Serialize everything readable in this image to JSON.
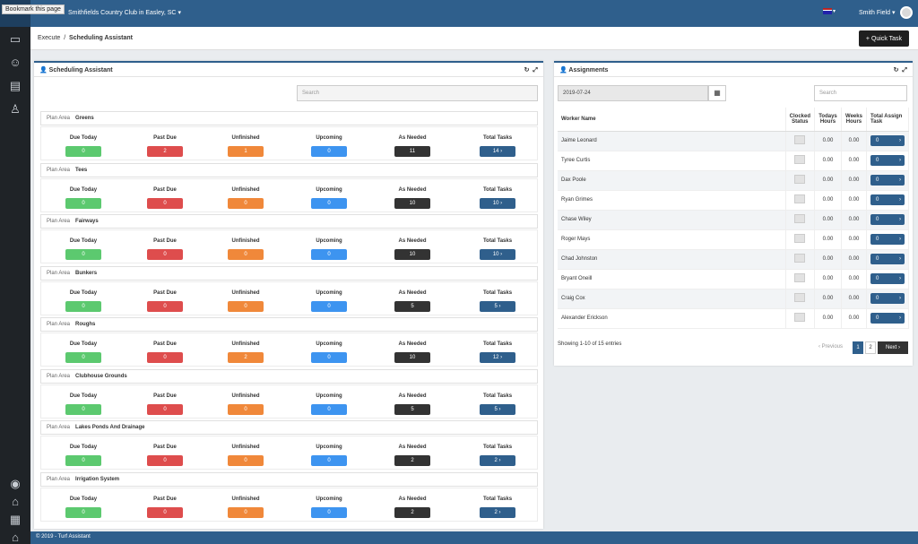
{
  "topbar": {
    "bookmark": "Bookmark this page",
    "club": "Smithfields Country Club in Easley, SC",
    "user": "Smith Field"
  },
  "breadcrumb": {
    "parent": "Execute",
    "separator": "/",
    "current": "Scheduling Assistant"
  },
  "quick_task": "+ Quick Task",
  "scheduling": {
    "title": "Scheduling Assistant",
    "search_placeholder": "Search",
    "plan_label": "Plan Area",
    "metric_labels": [
      "Due Today",
      "Past Due",
      "Unfinished",
      "Upcoming",
      "As Needed",
      "Total Tasks"
    ],
    "areas": [
      {
        "name": "Greens",
        "values": [
          "0",
          "2",
          "1",
          "0",
          "11",
          "14"
        ]
      },
      {
        "name": "Tees",
        "values": [
          "0",
          "0",
          "0",
          "0",
          "10",
          "10"
        ]
      },
      {
        "name": "Fairways",
        "values": [
          "0",
          "0",
          "0",
          "0",
          "10",
          "10"
        ]
      },
      {
        "name": "Bunkers",
        "values": [
          "0",
          "0",
          "0",
          "0",
          "5",
          "5"
        ]
      },
      {
        "name": "Roughs",
        "values": [
          "0",
          "0",
          "2",
          "0",
          "10",
          "12"
        ]
      },
      {
        "name": "Clubhouse Grounds",
        "values": [
          "0",
          "0",
          "0",
          "0",
          "5",
          "5"
        ]
      },
      {
        "name": "Lakes Ponds And Drainage",
        "values": [
          "0",
          "0",
          "0",
          "0",
          "2",
          "2"
        ]
      },
      {
        "name": "Irrigation System",
        "values": [
          "0",
          "0",
          "0",
          "0",
          "2",
          "2"
        ]
      }
    ],
    "chevron": "›"
  },
  "assignments": {
    "title": "Assignments",
    "date": "2019-07-24",
    "search_placeholder": "Search",
    "headers": [
      "Worker Name",
      "Clocked Status",
      "Todays Hours",
      "Weeks Hours",
      "Total Assign Task"
    ],
    "rows": [
      {
        "name": "Jaime Leonard",
        "today": "0.00",
        "week": "0.00",
        "tasks": "0"
      },
      {
        "name": "Tyree Curtis",
        "today": "0.00",
        "week": "0.00",
        "tasks": "0"
      },
      {
        "name": "Dax Poole",
        "today": "0.00",
        "week": "0.00",
        "tasks": "0"
      },
      {
        "name": "Ryan Grimes",
        "today": "0.00",
        "week": "0.00",
        "tasks": "0"
      },
      {
        "name": "Chase Wiley",
        "today": "0.00",
        "week": "0.00",
        "tasks": "0"
      },
      {
        "name": "Roger Mays",
        "today": "0.00",
        "week": "0.00",
        "tasks": "0"
      },
      {
        "name": "Chad Johnston",
        "today": "0.00",
        "week": "0.00",
        "tasks": "0"
      },
      {
        "name": "Bryant Oneill",
        "today": "0.00",
        "week": "0.00",
        "tasks": "0"
      },
      {
        "name": "Craig Cox",
        "today": "0.00",
        "week": "0.00",
        "tasks": "0"
      },
      {
        "name": "Alexander Erickson",
        "today": "0.00",
        "week": "0.00",
        "tasks": "0"
      }
    ],
    "showing": "Showing 1-10 of 15 entries",
    "prev": "‹ Previous",
    "pages": [
      "1",
      "2"
    ],
    "next": "Next ›"
  },
  "footer": "© 2019 - Turf Assistant"
}
